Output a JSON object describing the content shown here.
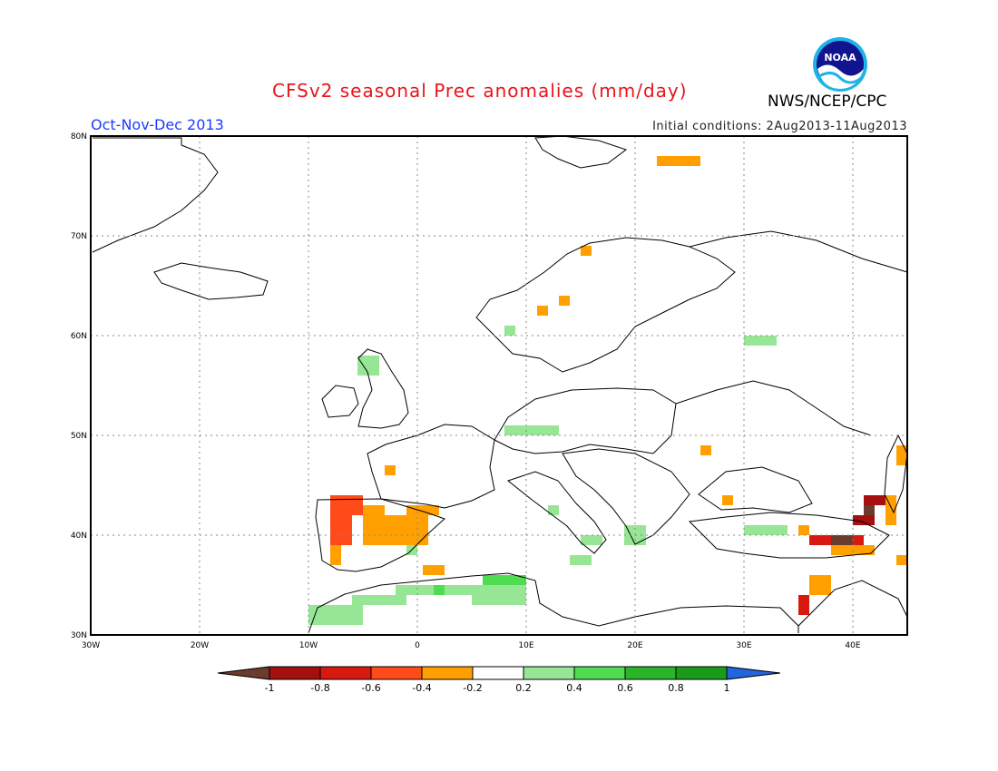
{
  "title": "CFSv2 seasonal Prec anomalies (mm/day)",
  "season": "Oct-Nov-Dec 2013",
  "initial_conditions": "Initial conditions: 2Aug2013-11Aug2013",
  "agency": "NWS/NCEP/CPC",
  "logo_text": "NOAA",
  "colors": {
    "frame": "#000000",
    "grid": "#888888",
    "coast": "#000000",
    "neg_lt_m1": "#6b3b2e",
    "neg_m1": "#a50f0f",
    "neg_m08": "#d7190f",
    "neg_m06": "#ff4a1a",
    "neg_m04": "#ffa000",
    "neutral": "#ffffff",
    "pos_02": "#96e696",
    "pos_04": "#50dc50",
    "pos_06": "#29b429",
    "pos_08": "#1a9b1a",
    "pos_gt1": "#2266dd"
  },
  "map": {
    "lon_min": -30,
    "lon_max": 45,
    "lat_min": 30,
    "lat_max": 80,
    "lon_ticks": [
      "30W",
      "20W",
      "10W",
      "0",
      "10E",
      "20E",
      "30E",
      "40E"
    ],
    "lat_ticks": [
      "30N",
      "40N",
      "50N",
      "60N",
      "70N",
      "80N"
    ]
  },
  "colorbar": {
    "labels": [
      "-1",
      "-0.8",
      "-0.6",
      "-0.4",
      "-0.2",
      "0.2",
      "0.4",
      "0.6",
      "0.8",
      "1"
    ]
  },
  "anomaly_cells": [
    {
      "lon": -8,
      "lat": 42,
      "w": 3,
      "h": 2,
      "c": "neg_m06"
    },
    {
      "lon": -8,
      "lat": 39,
      "w": 2,
      "h": 3,
      "c": "neg_m06"
    },
    {
      "lon": -8,
      "lat": 37,
      "w": 1,
      "h": 2,
      "c": "neg_m04"
    },
    {
      "lon": -5,
      "lat": 39,
      "w": 6,
      "h": 3,
      "c": "neg_m04"
    },
    {
      "lon": -5,
      "lat": 42,
      "w": 2,
      "h": 1,
      "c": "neg_m04"
    },
    {
      "lon": -1,
      "lat": 42,
      "w": 3,
      "h": 1,
      "c": "neg_m04"
    },
    {
      "lon": -3,
      "lat": 46,
      "w": 1,
      "h": 1,
      "c": "neg_m04"
    },
    {
      "lon": 0.5,
      "lat": 36,
      "w": 2,
      "h": 1,
      "c": "neg_m04"
    },
    {
      "lon": 13,
      "lat": 63,
      "w": 1,
      "h": 1,
      "c": "neg_m04"
    },
    {
      "lon": 15,
      "lat": 68,
      "w": 1,
      "h": 1,
      "c": "neg_m04"
    },
    {
      "lon": 11,
      "lat": 62,
      "w": 1,
      "h": 1,
      "c": "neg_m04"
    },
    {
      "lon": 22,
      "lat": 77,
      "w": 4,
      "h": 1,
      "c": "neg_m04"
    },
    {
      "lon": 26,
      "lat": 48,
      "w": 1,
      "h": 1,
      "c": "neg_m04"
    },
    {
      "lon": 28,
      "lat": 43,
      "w": 1,
      "h": 1,
      "c": "neg_m04"
    },
    {
      "lon": 35,
      "lat": 40,
      "w": 1,
      "h": 1,
      "c": "neg_m04"
    },
    {
      "lon": 38,
      "lat": 38,
      "w": 4,
      "h": 1,
      "c": "neg_m04"
    },
    {
      "lon": 36,
      "lat": 34,
      "w": 2,
      "h": 2,
      "c": "neg_m04"
    },
    {
      "lon": 44,
      "lat": 47,
      "w": 1,
      "h": 2,
      "c": "neg_m04"
    },
    {
      "lon": 44,
      "lat": 37,
      "w": 1,
      "h": 1,
      "c": "neg_m04"
    },
    {
      "lon": 36,
      "lat": 39,
      "w": 5,
      "h": 1,
      "c": "neg_m08"
    },
    {
      "lon": 35,
      "lat": 32,
      "w": 1,
      "h": 2,
      "c": "neg_m08"
    },
    {
      "lon": 40,
      "lat": 41,
      "w": 2,
      "h": 1,
      "c": "neg_m1"
    },
    {
      "lon": 41,
      "lat": 43,
      "w": 2,
      "h": 1,
      "c": "neg_m1"
    },
    {
      "lon": 41,
      "lat": 42,
      "w": 1,
      "h": 1,
      "c": "neg_lt_m1"
    },
    {
      "lon": 38,
      "lat": 39,
      "w": 2,
      "h": 1,
      "c": "neg_lt_m1"
    },
    {
      "lon": 43,
      "lat": 41,
      "w": 1,
      "h": 3,
      "c": "neg_m04"
    },
    {
      "lon": -10,
      "lat": 31,
      "w": 5,
      "h": 2,
      "c": "pos_02"
    },
    {
      "lon": -6,
      "lat": 33,
      "w": 5,
      "h": 1,
      "c": "pos_02"
    },
    {
      "lon": -2,
      "lat": 34,
      "w": 8,
      "h": 1,
      "c": "pos_02"
    },
    {
      "lon": 5,
      "lat": 33,
      "w": 5,
      "h": 2,
      "c": "pos_02"
    },
    {
      "lon": 6,
      "lat": 35,
      "w": 4,
      "h": 1,
      "c": "pos_04"
    },
    {
      "lon": 1.5,
      "lat": 34,
      "w": 1,
      "h": 1,
      "c": "pos_04"
    },
    {
      "lon": 8,
      "lat": 50,
      "w": 5,
      "h": 1,
      "c": "pos_02"
    },
    {
      "lon": -5.5,
      "lat": 56,
      "w": 2,
      "h": 2,
      "c": "pos_02"
    },
    {
      "lon": 8,
      "lat": 60,
      "w": 1,
      "h": 1,
      "c": "pos_02"
    },
    {
      "lon": 30,
      "lat": 59,
      "w": 3,
      "h": 1,
      "c": "pos_02"
    },
    {
      "lon": 30,
      "lat": 40,
      "w": 4,
      "h": 1,
      "c": "pos_02"
    },
    {
      "lon": 12,
      "lat": 42,
      "w": 1,
      "h": 1,
      "c": "pos_02"
    },
    {
      "lon": 19,
      "lat": 39,
      "w": 2,
      "h": 2,
      "c": "pos_02"
    },
    {
      "lon": 15,
      "lat": 39,
      "w": 2,
      "h": 1,
      "c": "pos_02"
    },
    {
      "lon": 14,
      "lat": 37,
      "w": 2,
      "h": 1,
      "c": "pos_02"
    },
    {
      "lon": -1,
      "lat": 38,
      "w": 1,
      "h": 1,
      "c": "pos_02"
    }
  ]
}
